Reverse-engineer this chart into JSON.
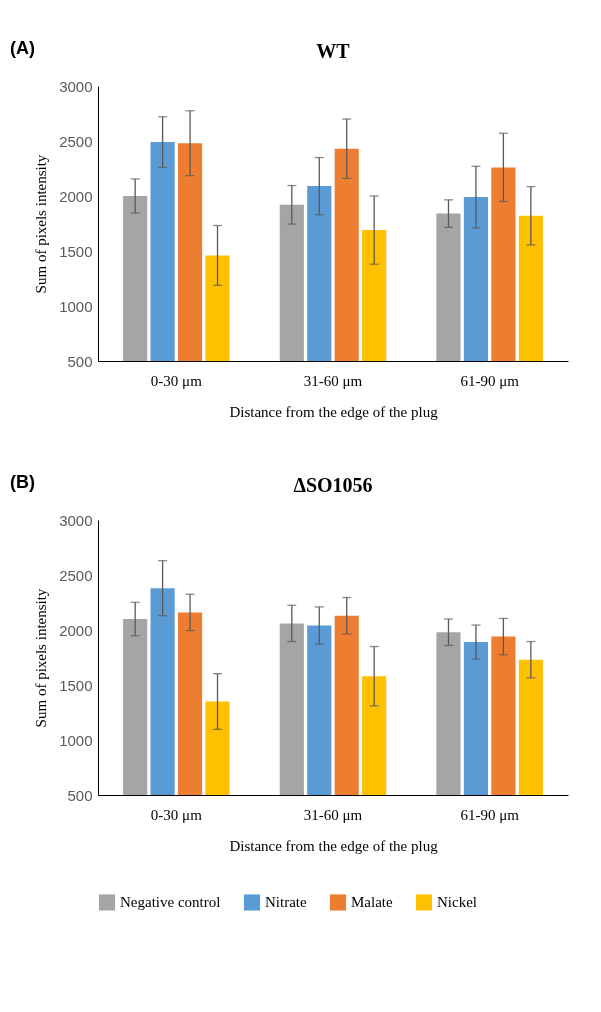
{
  "chart_data": [
    {
      "type": "bar",
      "title": "WT",
      "annotations": [
        "(A)"
      ],
      "categories": [
        "0-30 μm",
        "31-60 μm",
        "61-90 μm"
      ],
      "xlabel": "Distance from the edge of the plug",
      "ylabel": "Sum of pixels intensity",
      "ylim": [
        500,
        3000
      ],
      "yticks": [
        500,
        1000,
        1500,
        2000,
        2500,
        3000
      ],
      "grid": false,
      "series": [
        {
          "color": "#a5a5a5",
          "values": [
            2000,
            1920,
            1840
          ],
          "errors": [
            155,
            175,
            125
          ]
        },
        {
          "color": "#5b9bd5",
          "values": [
            2490,
            2090,
            1990
          ],
          "errors": [
            230,
            260,
            280
          ]
        },
        {
          "color": "#ed7d31",
          "values": [
            2480,
            2430,
            2260
          ],
          "errors": [
            295,
            270,
            310
          ]
        },
        {
          "color": "#ffc000",
          "values": [
            1460,
            1690,
            1820
          ],
          "errors": [
            272,
            310,
            265
          ]
        }
      ]
    },
    {
      "type": "bar",
      "title": "ΔSO1056",
      "annotations": [
        "(B)"
      ],
      "categories": [
        "0-30 μm",
        "31-60 μm",
        "61-90 μm"
      ],
      "xlabel": "Distance from the edge of the plug",
      "ylabel": "Sum of pixels intensity",
      "ylim": [
        500,
        3000
      ],
      "yticks": [
        500,
        1000,
        1500,
        2000,
        2500,
        3000
      ],
      "grid": false,
      "legend": "bottom",
      "series": [
        {
          "name": "Negative control",
          "color": "#a5a5a5",
          "values": [
            2100,
            2060,
            1980
          ],
          "errors": [
            152,
            165,
            120
          ]
        },
        {
          "name": "Nitrate",
          "color": "#5b9bd5",
          "values": [
            2380,
            2040,
            1890
          ],
          "errors": [
            250,
            170,
            155
          ]
        },
        {
          "name": "Malate",
          "color": "#ed7d31",
          "values": [
            2160,
            2130,
            1940
          ],
          "errors": [
            165,
            165,
            165
          ]
        },
        {
          "name": "Nickel",
          "color": "#ffc000",
          "values": [
            1350,
            1580,
            1730
          ],
          "errors": [
            253,
            270,
            165
          ]
        }
      ]
    }
  ]
}
